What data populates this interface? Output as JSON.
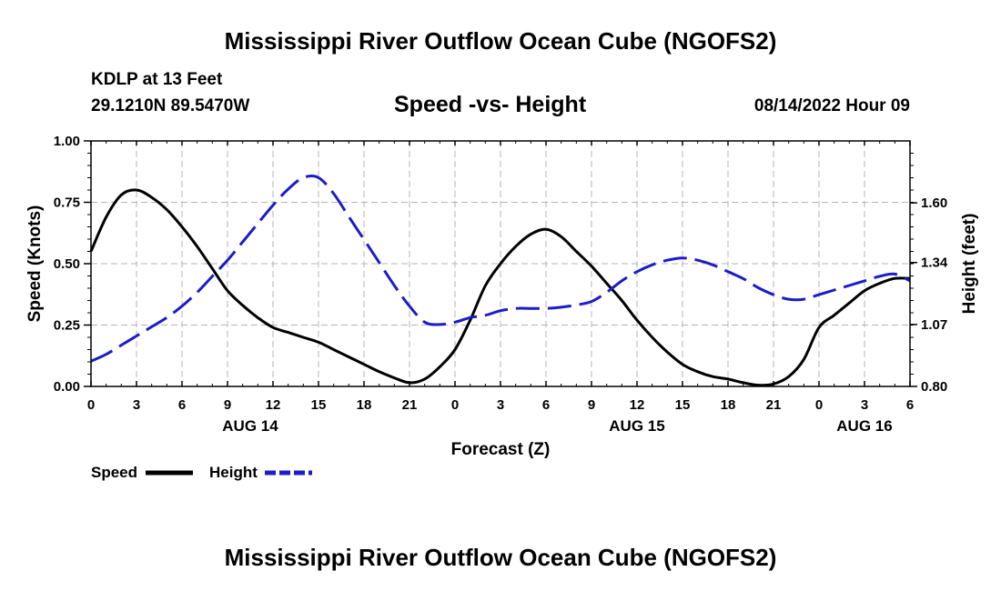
{
  "header": {
    "main_title": "Mississippi River Outflow Ocean Cube (NGOFS2)",
    "station_name": "KDLP at 13 Feet",
    "station_coords": "29.1210N  89.5470W",
    "chart_subtitle": "Speed -vs- Height",
    "date": "08/14/2022 Hour 09"
  },
  "footer": {
    "repeat_title": "Mississippi River Outflow Ocean Cube (NGOFS2)"
  },
  "colors": {
    "speed": "#000000",
    "height": "#1c1cc8",
    "grid": "#b4b4b4"
  },
  "chart_data": {
    "type": "line",
    "title": "Speed -vs- Height",
    "xlabel": "Forecast (Z)",
    "ylabel": "Speed (Knots)",
    "y2label": "Height (feet)",
    "x": [
      0,
      3,
      6,
      9,
      12,
      15,
      18,
      21,
      24,
      27,
      30,
      33,
      36,
      39,
      42,
      45,
      48,
      51,
      54
    ],
    "x_tick_labels": [
      "0",
      "3",
      "6",
      "9",
      "12",
      "15",
      "18",
      "21",
      "0",
      "3",
      "6",
      "9",
      "12",
      "15",
      "18",
      "21",
      "0",
      "3",
      "6"
    ],
    "day_labels": [
      {
        "label": "AUG 14",
        "x": 10.5
      },
      {
        "label": "AUG 15",
        "x": 36
      },
      {
        "label": "AUG 16",
        "x": 51
      }
    ],
    "xlim": [
      0,
      54
    ],
    "ylim": [
      0,
      1.0
    ],
    "y_ticks": [
      0,
      0.25,
      0.5,
      0.75,
      1.0
    ],
    "y_tick_labels": [
      "0.00",
      "0.25",
      "0.50",
      "0.75",
      "1.00"
    ],
    "y2lim": [
      0.8,
      1.87
    ],
    "y2_ticks": [
      0.8,
      1.07,
      1.34,
      1.6
    ],
    "y2_tick_labels": [
      "0.80",
      "1.07",
      "1.34",
      "1.60"
    ],
    "grid": true,
    "legend_position": "bottom-left",
    "series": [
      {
        "name": "Speed",
        "axis": "left",
        "style": "solid",
        "x": [
          0,
          1,
          2,
          3,
          4,
          5,
          6,
          7,
          8,
          9,
          10,
          11,
          12,
          13,
          14,
          15,
          16,
          17,
          18,
          19,
          20,
          21,
          22,
          23,
          24,
          25,
          26,
          27,
          28,
          29,
          30,
          31,
          32,
          33,
          34,
          35,
          36,
          37,
          38,
          39,
          40,
          41,
          42,
          43,
          44,
          45,
          46,
          47,
          48,
          49,
          50,
          51,
          52,
          53,
          54
        ],
        "values": [
          0.55,
          0.69,
          0.78,
          0.8,
          0.77,
          0.72,
          0.65,
          0.57,
          0.48,
          0.39,
          0.33,
          0.28,
          0.24,
          0.22,
          0.2,
          0.18,
          0.15,
          0.12,
          0.09,
          0.06,
          0.035,
          0.015,
          0.03,
          0.08,
          0.15,
          0.27,
          0.41,
          0.5,
          0.57,
          0.62,
          0.64,
          0.61,
          0.55,
          0.49,
          0.42,
          0.35,
          0.27,
          0.2,
          0.14,
          0.09,
          0.06,
          0.04,
          0.03,
          0.015,
          0.005,
          0.01,
          0.04,
          0.11,
          0.24,
          0.29,
          0.34,
          0.39,
          0.42,
          0.44,
          0.44
        ]
      },
      {
        "name": "Height",
        "axis": "right",
        "style": "dashed",
        "x": [
          0,
          1,
          2,
          3,
          4,
          5,
          6,
          7,
          8,
          9,
          10,
          11,
          12,
          13,
          14,
          15,
          16,
          17,
          18,
          19,
          20,
          21,
          22,
          23,
          24,
          25,
          26,
          27,
          28,
          29,
          30,
          31,
          32,
          33,
          34,
          35,
          36,
          37,
          38,
          39,
          40,
          41,
          42,
          43,
          44,
          45,
          46,
          47,
          48,
          49,
          50,
          51,
          52,
          53,
          54
        ],
        "values": [
          0.91,
          0.94,
          0.98,
          1.02,
          1.06,
          1.1,
          1.15,
          1.21,
          1.28,
          1.35,
          1.43,
          1.51,
          1.59,
          1.66,
          1.71,
          1.71,
          1.64,
          1.54,
          1.44,
          1.34,
          1.24,
          1.15,
          1.08,
          1.07,
          1.08,
          1.1,
          1.11,
          1.13,
          1.14,
          1.14,
          1.14,
          1.145,
          1.155,
          1.17,
          1.21,
          1.26,
          1.3,
          1.33,
          1.35,
          1.36,
          1.35,
          1.33,
          1.3,
          1.27,
          1.23,
          1.2,
          1.18,
          1.18,
          1.2,
          1.22,
          1.24,
          1.26,
          1.28,
          1.29,
          1.26
        ]
      }
    ]
  }
}
